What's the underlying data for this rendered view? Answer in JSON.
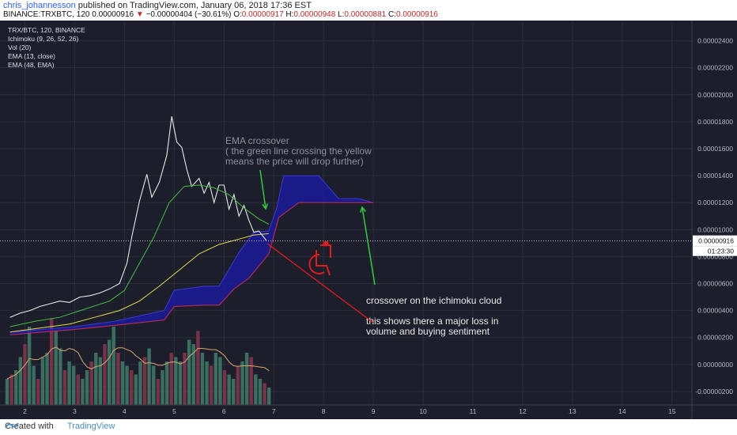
{
  "header": {
    "author": "chris_johannesson",
    "published": "published on TradingView.com, January 06, 2018 17:36 EST",
    "symbol_line_prefix": "BINANCE:TRXBTC, 120",
    "last": "0.00000916",
    "change": "−0.00000404 (−30.61%)",
    "o_label": "O:",
    "o": "0.00000917",
    "h_label": "H:",
    "h": "0.00000948",
    "l_label": "L:",
    "l": "0.00000881",
    "c_label": "C:",
    "c": "0.00000916"
  },
  "legend": [
    "TRX/BTC, 120, BINANCE",
    "Ichimoku (9, 26, 52, 26)",
    "Vol (20)",
    "EMA (13, close)",
    "EMA (48, EMA)"
  ],
  "annotations": {
    "ema_note": [
      "EMA crossover",
      "( the green line crossing the yellow",
      "means the price will drop further)"
    ],
    "cloud_note": "crossover on the ichimoku cloud",
    "volume_note": [
      "this shows there a major loss in",
      "volume and buying sentiment"
    ]
  },
  "price_label": "0.00000916",
  "countdown": "01:23:30",
  "footer": {
    "created": "Created with",
    "brand": "TradingView"
  },
  "colors": {
    "background": "#1c1f2b",
    "price": "#e8e8e8",
    "ema13": "#3fbf3f",
    "ema48": "#e6d84a",
    "cloud": "#1a1aa8",
    "annotation_arrow": "#2ecc40",
    "drawing_red": "#e01b1b",
    "volume_up": "#3f7d6a",
    "volume_down": "#8a3550"
  },
  "chart_data": {
    "type": "line",
    "x_ticks": [
      "2",
      "3",
      "4",
      "5",
      "6",
      "7",
      "8",
      "9",
      "10",
      "11",
      "12",
      "13",
      "14",
      "15"
    ],
    "y_ticks": [
      "0.00002400",
      "0.00002200",
      "0.00002000",
      "0.00001800",
      "0.00001600",
      "0.00001400",
      "0.00001200",
      "0.00001000",
      "0.00000800",
      "0.00000600",
      "0.00000400",
      "0.00000200",
      "0.00000000",
      "-0.00000200"
    ],
    "series": [
      {
        "name": "TRX/BTC",
        "points": [
          [
            1.7,
            3.5e-06
          ],
          [
            1.9,
            3.8e-06
          ],
          [
            2.1,
            4e-06
          ],
          [
            2.3,
            4.3e-06
          ],
          [
            2.5,
            4.5e-06
          ],
          [
            2.7,
            4.7e-06
          ],
          [
            2.9,
            4.6e-06
          ],
          [
            3.1,
            5e-06
          ],
          [
            3.3,
            5.1e-06
          ],
          [
            3.5,
            5.3e-06
          ],
          [
            3.7,
            5.6e-06
          ],
          [
            3.9,
            6e-06
          ],
          [
            4.05,
            7.5e-06
          ],
          [
            4.15,
            9.5e-06
          ],
          [
            4.3,
            1.21e-05
          ],
          [
            4.45,
            1.41e-05
          ],
          [
            4.55,
            1.24e-05
          ],
          [
            4.7,
            1.35e-05
          ],
          [
            4.85,
            1.55e-05
          ],
          [
            4.95,
            1.84e-05
          ],
          [
            5.05,
            1.65e-05
          ],
          [
            5.15,
            1.61e-05
          ],
          [
            5.25,
            1.45e-05
          ],
          [
            5.35,
            1.32e-05
          ],
          [
            5.5,
            1.38e-05
          ],
          [
            5.6,
            1.27e-05
          ],
          [
            5.7,
            1.35e-05
          ],
          [
            5.8,
            1.2e-05
          ],
          [
            5.9,
            1.33e-05
          ],
          [
            6.0,
            1.33e-05
          ],
          [
            6.1,
            1.15e-05
          ],
          [
            6.2,
            1.26e-05
          ],
          [
            6.3,
            1.1e-05
          ],
          [
            6.4,
            1.18e-05
          ],
          [
            6.5,
            1.07e-05
          ],
          [
            6.6,
            9.8e-06
          ],
          [
            6.7,
            9.9e-06
          ],
          [
            6.85,
            9.2e-06
          ]
        ]
      },
      {
        "name": "EMA (13, close)",
        "points": [
          [
            1.7,
            2.8e-06
          ],
          [
            2.2,
            3.2e-06
          ],
          [
            2.7,
            3.5e-06
          ],
          [
            3.2,
            4.1e-06
          ],
          [
            3.7,
            4.7e-06
          ],
          [
            4.0,
            5.5e-06
          ],
          [
            4.3,
            7.5e-06
          ],
          [
            4.6,
            9.5e-06
          ],
          [
            4.9,
            1.2e-05
          ],
          [
            5.2,
            1.32e-05
          ],
          [
            5.5,
            1.33e-05
          ],
          [
            5.8,
            1.31e-05
          ],
          [
            6.1,
            1.26e-05
          ],
          [
            6.4,
            1.16e-05
          ],
          [
            6.7,
            1.08e-05
          ],
          [
            6.9,
            1.04e-05
          ]
        ]
      },
      {
        "name": "EMA (48, EMA)",
        "points": [
          [
            1.7,
            2.4e-06
          ],
          [
            2.3,
            2.7e-06
          ],
          [
            2.9,
            3e-06
          ],
          [
            3.4,
            3.5e-06
          ],
          [
            3.9,
            4e-06
          ],
          [
            4.3,
            4.7e-06
          ],
          [
            4.7,
            5.8e-06
          ],
          [
            5.1,
            7e-06
          ],
          [
            5.5,
            8.2e-06
          ],
          [
            5.9,
            8.9e-06
          ],
          [
            6.3,
            9.3e-06
          ],
          [
            6.6,
            9.6e-06
          ],
          [
            6.9,
            9.7e-06
          ]
        ]
      }
    ],
    "ichimoku_cloud": {
      "top": [
        [
          1.7,
          2.4e-06
        ],
        [
          3.0,
          2.8e-06
        ],
        [
          3.8,
          3.2e-06
        ],
        [
          4.8,
          4e-06
        ],
        [
          5.0,
          5.5e-06
        ],
        [
          5.6,
          5.8e-06
        ],
        [
          5.9,
          5.8e-06
        ],
        [
          6.3,
          8.3e-06
        ],
        [
          6.6,
          9.8e-06
        ],
        [
          6.9,
          9.9e-06
        ],
        [
          7.05,
          1.15e-05
        ],
        [
          7.2,
          1.4e-05
        ],
        [
          7.9,
          1.4e-05
        ],
        [
          8.3,
          1.23e-05
        ],
        [
          8.7,
          1.23e-05
        ],
        [
          9.0,
          1.2e-05
        ]
      ],
      "bottom": [
        [
          1.7,
          2.2e-06
        ],
        [
          3.0,
          2.6e-06
        ],
        [
          3.8,
          2.9e-06
        ],
        [
          4.8,
          3.3e-06
        ],
        [
          5.0,
          4.3e-06
        ],
        [
          5.6,
          4.4e-06
        ],
        [
          5.9,
          4.4e-06
        ],
        [
          6.2,
          5.6e-06
        ],
        [
          6.5,
          6.4e-06
        ],
        [
          6.9,
          8.2e-06
        ],
        [
          7.1,
          1.09e-05
        ],
        [
          7.5,
          1.2e-05
        ],
        [
          9.0,
          1.2e-05
        ]
      ]
    },
    "volume": [
      0.3,
      0.35,
      0.4,
      0.55,
      0.7,
      0.9,
      0.45,
      0.3,
      0.55,
      0.6,
      1.0,
      0.85,
      0.65,
      0.4,
      0.5,
      0.45,
      0.35,
      0.3,
      0.4,
      0.5,
      0.6,
      0.55,
      0.7,
      0.75,
      0.9,
      0.6,
      0.5,
      0.45,
      0.4,
      0.35,
      0.5,
      0.55,
      0.65,
      0.45,
      0.3,
      0.4,
      0.5,
      0.6,
      0.55,
      0.5,
      0.6,
      0.75,
      0.7,
      0.85,
      0.6,
      0.5,
      0.45,
      0.6,
      0.55,
      0.4,
      0.35,
      0.3,
      0.45,
      0.5,
      0.6,
      0.55,
      0.35,
      0.3,
      0.25,
      0.2
    ],
    "ylim": [
      -3e-06,
      2.55e-05
    ],
    "xlim": [
      1.5,
      15.4
    ],
    "grid": true,
    "last_price": 9.16e-06
  }
}
